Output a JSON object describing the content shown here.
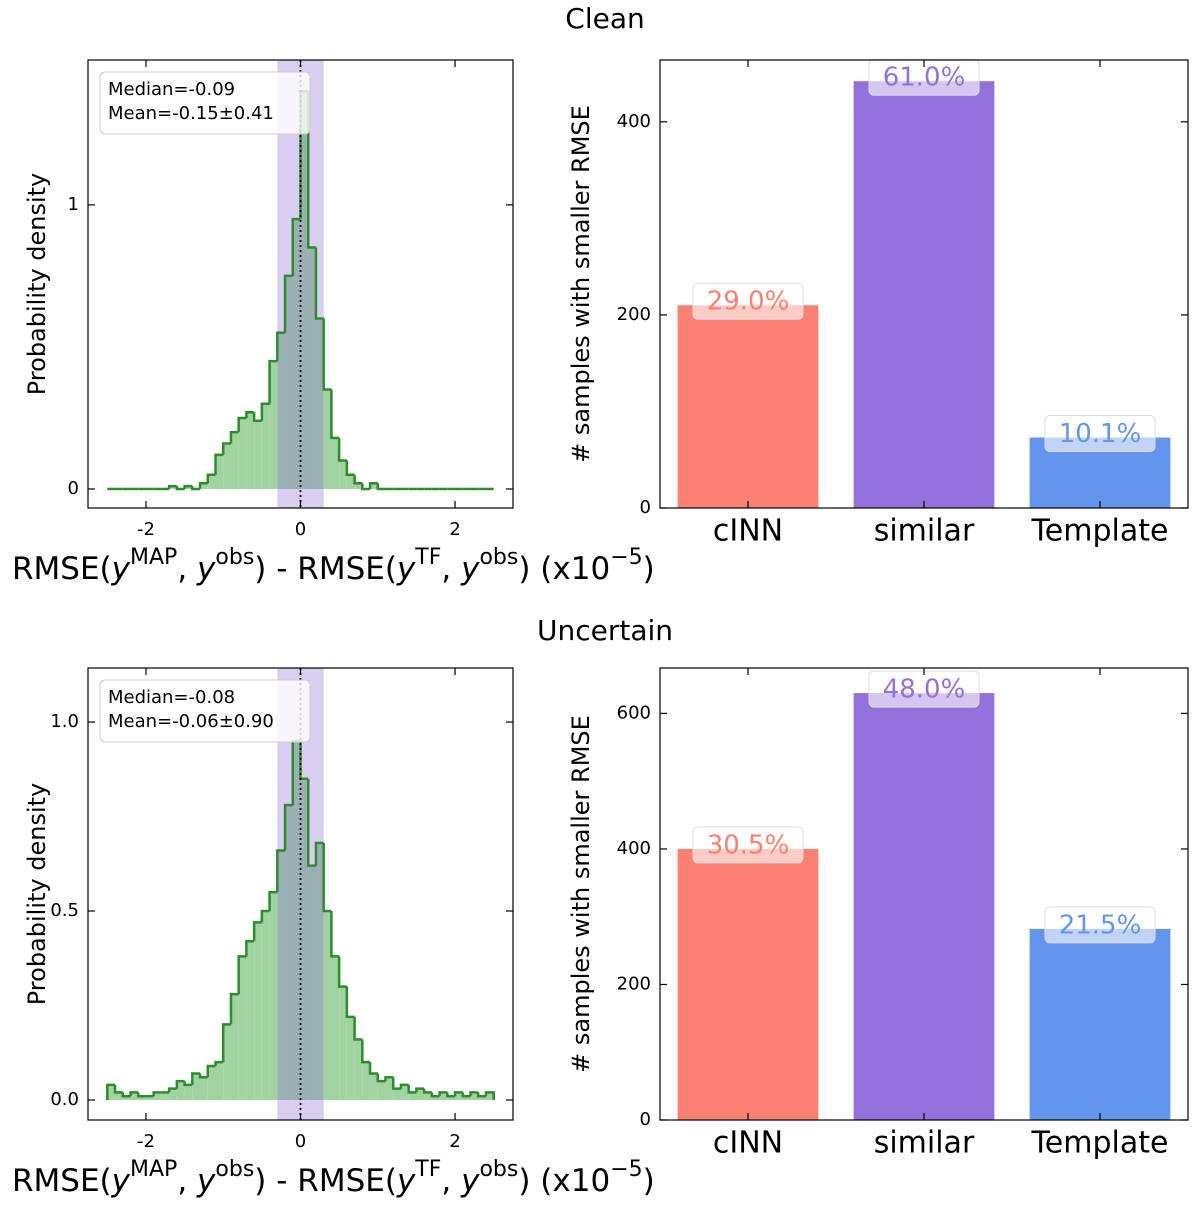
{
  "row_titles": [
    "Clean",
    "Uncertain"
  ],
  "chart_data": [
    {
      "type": "histogram",
      "bins": [
        -2.5,
        -2.4,
        -2.3,
        -2.2,
        -2.1,
        -2.0,
        -1.9,
        -1.8,
        -1.7,
        -1.6,
        -1.5,
        -1.4,
        -1.3,
        -1.2,
        -1.1,
        -1.0,
        -0.9,
        -0.8,
        -0.7,
        -0.6,
        -0.5,
        -0.4,
        -0.3,
        -0.2,
        -0.1,
        0.0,
        0.1,
        0.2,
        0.3,
        0.4,
        0.5,
        0.6,
        0.7,
        0.8,
        0.9,
        1.0,
        1.1,
        1.2,
        1.3,
        1.4,
        1.5,
        1.6,
        1.7,
        1.8,
        1.9,
        2.0,
        2.1,
        2.2,
        2.3,
        2.4,
        2.5
      ],
      "values": [
        0,
        0,
        0,
        0,
        0,
        0,
        0,
        0,
        0.01,
        0,
        0.01,
        0,
        0.02,
        0.05,
        0.12,
        0.16,
        0.2,
        0.25,
        0.27,
        0.24,
        0.3,
        0.45,
        0.55,
        0.75,
        0.95,
        1.4,
        0.85,
        0.6,
        0.35,
        0.18,
        0.1,
        0.05,
        0.02,
        0,
        0.02,
        0,
        0,
        0,
        0,
        0,
        0,
        0,
        0,
        0,
        0,
        0,
        0,
        0,
        0,
        0
      ],
      "color": "#2e8b2e",
      "fill": "#a0d3a0",
      "band": [
        -0.3,
        0.3
      ],
      "band_color": "#9370db",
      "vline": 0,
      "annotations": [
        "Median=-0.09",
        "Mean=-0.15±0.41"
      ],
      "xlim": [
        -2.75,
        2.75
      ],
      "xticks": [
        -2,
        0,
        2
      ],
      "ylim": [
        -0.067,
        1.51
      ],
      "yticks": [
        0,
        1
      ],
      "ylabel": "Probability density",
      "xlabel": [
        {
          "text": "RMSE("
        },
        {
          "text": "y",
          "style": "italic"
        },
        {
          "text": "MAP",
          "style": "sup"
        },
        {
          "text": ", "
        },
        {
          "text": "y",
          "style": "italic"
        },
        {
          "text": "obs",
          "style": "sup"
        },
        {
          "text": ") - RMSE("
        },
        {
          "text": "y",
          "style": "italic"
        },
        {
          "text": "TF",
          "style": "sup"
        },
        {
          "text": ", "
        },
        {
          "text": "y",
          "style": "italic"
        },
        {
          "text": "obs",
          "style": "sup"
        },
        {
          "text": ") (x10"
        },
        {
          "text": "−5",
          "style": "sup"
        },
        {
          "text": ")"
        }
      ]
    },
    {
      "type": "bar",
      "categories": [
        "cINN",
        "similar",
        "Template"
      ],
      "values": [
        210,
        442,
        73
      ],
      "share_labels": [
        "29.0%",
        "61.0%",
        "10.1%"
      ],
      "colors": [
        "#fa8072",
        "#9370db",
        "#6495ed"
      ],
      "ylim": [
        0,
        464
      ],
      "yticks": [
        0,
        200,
        400
      ],
      "ylabel": "# samples with smaller RMSE"
    },
    {
      "type": "histogram",
      "bins": [
        -2.5,
        -2.4,
        -2.3,
        -2.2,
        -2.1,
        -2.0,
        -1.9,
        -1.8,
        -1.7,
        -1.6,
        -1.5,
        -1.4,
        -1.3,
        -1.2,
        -1.1,
        -1.0,
        -0.9,
        -0.8,
        -0.7,
        -0.6,
        -0.5,
        -0.4,
        -0.3,
        -0.2,
        -0.1,
        0.0,
        0.1,
        0.2,
        0.3,
        0.4,
        0.5,
        0.6,
        0.7,
        0.8,
        0.9,
        1.0,
        1.1,
        1.2,
        1.3,
        1.4,
        1.5,
        1.6,
        1.7,
        1.8,
        1.9,
        2.0,
        2.1,
        2.2,
        2.3,
        2.4,
        2.5
      ],
      "values": [
        0.04,
        0.02,
        0.01,
        0.02,
        0.01,
        0.01,
        0.02,
        0.02,
        0.03,
        0.05,
        0.04,
        0.07,
        0.06,
        0.09,
        0.1,
        0.2,
        0.28,
        0.38,
        0.42,
        0.47,
        0.5,
        0.55,
        0.66,
        0.78,
        0.95,
        0.85,
        0.62,
        0.68,
        0.5,
        0.38,
        0.3,
        0.22,
        0.16,
        0.1,
        0.07,
        0.05,
        0.06,
        0.03,
        0.04,
        0.02,
        0.03,
        0.02,
        0.01,
        0.02,
        0.01,
        0.02,
        0.01,
        0.02,
        0.01,
        0.02
      ],
      "color": "#2e8b2e",
      "fill": "#a0d3a0",
      "band": [
        -0.3,
        0.3
      ],
      "band_color": "#9370db",
      "vline": 0,
      "annotations": [
        "Median=-0.08",
        "Mean=-0.06±0.90"
      ],
      "xlim": [
        -2.75,
        2.75
      ],
      "xticks": [
        -2,
        0,
        2
      ],
      "ylim": [
        -0.053,
        1.143
      ],
      "yticks": [
        {
          "value": 0,
          "label": "0.0"
        },
        0.5,
        {
          "value": 1,
          "label": "1.0"
        }
      ],
      "ylabel": "Probability density",
      "xlabel": [
        {
          "text": "RMSE("
        },
        {
          "text": "y",
          "style": "italic"
        },
        {
          "text": "MAP",
          "style": "sup"
        },
        {
          "text": ", "
        },
        {
          "text": "y",
          "style": "italic"
        },
        {
          "text": "obs",
          "style": "sup"
        },
        {
          "text": ") - RMSE("
        },
        {
          "text": "y",
          "style": "italic"
        },
        {
          "text": "TF",
          "style": "sup"
        },
        {
          "text": ", "
        },
        {
          "text": "y",
          "style": "italic"
        },
        {
          "text": "obs",
          "style": "sup"
        },
        {
          "text": ") (x10"
        },
        {
          "text": "−5",
          "style": "sup"
        },
        {
          "text": ")"
        }
      ]
    },
    {
      "type": "bar",
      "categories": [
        "cINN",
        "similar",
        "Template"
      ],
      "values": [
        400,
        630,
        282
      ],
      "share_labels": [
        "30.5%",
        "48.0%",
        "21.5%"
      ],
      "colors": [
        "#fa8072",
        "#9370db",
        "#6495ed"
      ],
      "ylim": [
        0,
        667
      ],
      "yticks": [
        0,
        200,
        400,
        600
      ],
      "ylabel": "# samples with smaller RMSE"
    }
  ]
}
